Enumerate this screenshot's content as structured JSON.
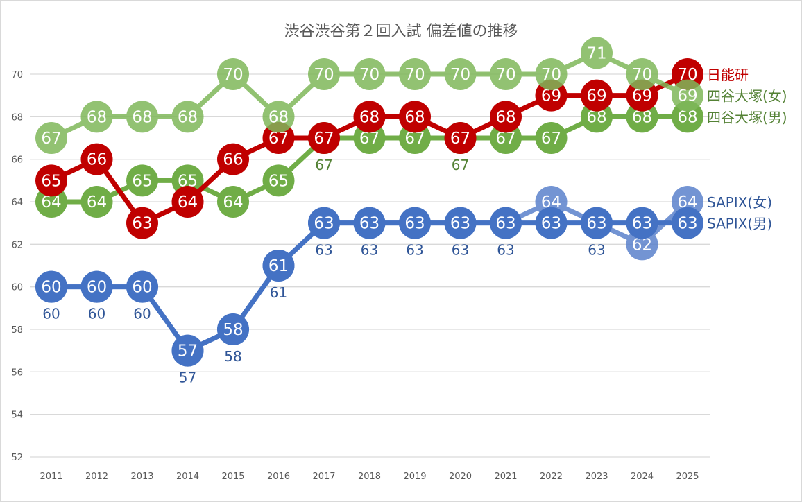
{
  "chart_data": {
    "type": "line",
    "title": "渋谷渋谷第２回入試 偏差値の推移",
    "xlabel": "",
    "ylabel": "",
    "categories": [
      "2011",
      "2012",
      "2013",
      "2014",
      "2015",
      "2016",
      "2017",
      "2018",
      "2019",
      "2020",
      "2021",
      "2022",
      "2023",
      "2024",
      "2025"
    ],
    "ylim": [
      52,
      70
    ],
    "yticks": [
      52,
      54,
      56,
      58,
      60,
      62,
      64,
      66,
      68,
      70
    ],
    "grid": true,
    "legend": "inline-right",
    "data_labels": true,
    "series": [
      {
        "name": "SAPIX(女)",
        "color": "#5b82cc",
        "label_color": "#2f5597",
        "opacity": 0.85,
        "values": [
          60,
          60,
          60,
          57,
          58,
          61,
          63,
          63,
          63,
          63,
          63,
          64,
          63,
          62,
          64
        ]
      },
      {
        "name": "SAPIX(男)",
        "color": "#4472c4",
        "label_color": "#2f5597",
        "opacity": 1,
        "values": [
          60,
          60,
          60,
          57,
          58,
          61,
          63,
          63,
          63,
          63,
          63,
          63,
          63,
          63,
          63
        ]
      },
      {
        "name": "四谷大塚(男)",
        "color": "#70ad47",
        "label_color": "#548235",
        "opacity": 1,
        "values": [
          64,
          64,
          65,
          65,
          64,
          65,
          67,
          67,
          67,
          67,
          67,
          67,
          68,
          68,
          68
        ]
      },
      {
        "name": "日能研",
        "color": "#c00000",
        "label_color": "#c00000",
        "opacity": 1,
        "values": [
          65,
          66,
          63,
          64,
          66,
          67,
          67,
          68,
          68,
          67,
          68,
          69,
          69,
          69,
          70
        ]
      },
      {
        "name": "四谷大塚(女)",
        "color": "#7fb85a",
        "label_color": "#548235",
        "opacity": 0.85,
        "values": [
          67,
          68,
          68,
          68,
          70,
          68,
          70,
          70,
          70,
          70,
          70,
          70,
          71,
          70,
          69
        ]
      }
    ]
  }
}
